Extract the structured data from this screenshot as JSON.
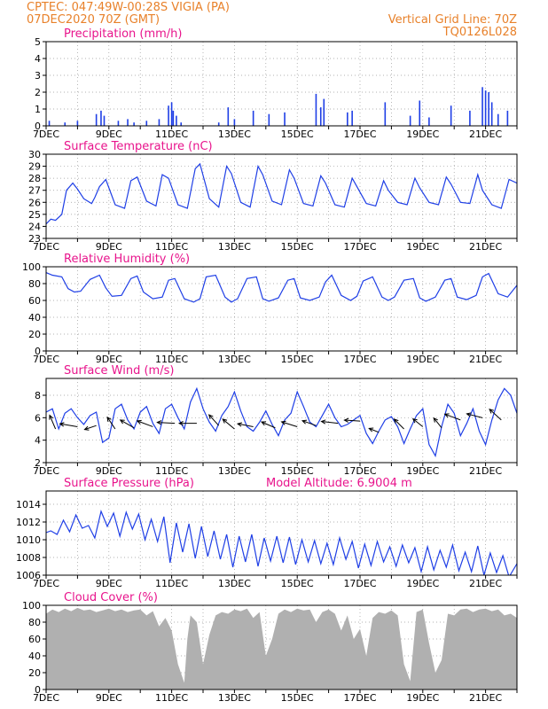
{
  "header": {
    "station": "CPTEC:    047:49W-00:28S   VIGIA (PA)",
    "init": "07DEC2020 70Z (GMT)",
    "grid_note": "Vertical Grid Line: 70Z",
    "model_id": "TQ0126L028"
  },
  "colors": {
    "header_text": "#e8812a",
    "title_text": "#e8148c",
    "line": "#1f3fe6",
    "bar": "#1f3fe6",
    "cloud_fill": "#b0b0b0",
    "arrow": "#000000",
    "grid": "#999999"
  },
  "x_ticks": [
    "7DEC",
    "9DEC",
    "11DEC",
    "13DEC",
    "15DEC",
    "17DEC",
    "19DEC",
    "21DEC"
  ],
  "x_range_days": [
    7,
    22
  ],
  "chart_data": [
    {
      "id": "precip",
      "type": "bar",
      "title": "Precipitation (mm/h)",
      "ylim": [
        0,
        5
      ],
      "yticks": [
        "0",
        "1",
        "2",
        "3",
        "4",
        "5"
      ],
      "tick_values": [
        0,
        1,
        2,
        3,
        4,
        5
      ],
      "x": [
        7.1,
        7.6,
        8.0,
        8.6,
        8.75,
        8.85,
        9.3,
        9.6,
        9.8,
        10.2,
        10.6,
        10.9,
        11.0,
        11.05,
        11.15,
        11.3,
        12.5,
        12.8,
        13.0,
        13.6,
        14.1,
        14.6,
        15.6,
        15.75,
        15.85,
        16.6,
        16.75,
        17.8,
        18.6,
        18.9,
        19.2,
        19.9,
        20.5,
        20.9,
        21.0,
        21.1,
        21.2,
        21.4,
        21.7
      ],
      "values": [
        0.3,
        0.2,
        0.3,
        0.7,
        0.9,
        0.6,
        0.3,
        0.4,
        0.2,
        0.3,
        0.4,
        1.2,
        1.4,
        0.9,
        0.6,
        0.2,
        0.2,
        1.1,
        0.4,
        0.9,
        0.7,
        0.8,
        1.9,
        1.1,
        1.6,
        0.8,
        0.9,
        1.4,
        0.6,
        1.5,
        0.5,
        1.2,
        0.9,
        2.3,
        2.1,
        2.0,
        1.4,
        0.7,
        0.9
      ]
    },
    {
      "id": "temp",
      "type": "line",
      "title": "Surface Temperature (nC)",
      "ylim": [
        23,
        30
      ],
      "yticks": [
        "23",
        "24",
        "25",
        "26",
        "27",
        "28",
        "29",
        "30"
      ],
      "tick_values": [
        23,
        24,
        25,
        26,
        27,
        28,
        29,
        30
      ],
      "x": [
        7.0,
        7.15,
        7.3,
        7.5,
        7.65,
        7.85,
        8.0,
        8.2,
        8.45,
        8.55,
        8.7,
        8.9,
        9.2,
        9.5,
        9.7,
        9.9,
        10.2,
        10.5,
        10.7,
        10.9,
        11.2,
        11.5,
        11.75,
        11.9,
        12.2,
        12.5,
        12.75,
        12.9,
        13.2,
        13.5,
        13.75,
        13.9,
        14.2,
        14.5,
        14.75,
        14.9,
        15.2,
        15.5,
        15.75,
        15.9,
        16.2,
        16.5,
        16.75,
        16.9,
        17.2,
        17.5,
        17.75,
        17.9,
        18.2,
        18.5,
        18.75,
        18.9,
        19.2,
        19.5,
        19.75,
        19.9,
        20.2,
        20.5,
        20.75,
        20.9,
        21.2,
        21.5,
        21.75,
        22.0
      ],
      "values": [
        24.2,
        24.6,
        24.5,
        25.0,
        27.0,
        27.6,
        27.1,
        26.3,
        25.9,
        26.4,
        27.3,
        27.9,
        25.8,
        25.5,
        27.8,
        28.1,
        26.1,
        25.7,
        28.3,
        28.0,
        25.8,
        25.5,
        28.8,
        29.2,
        26.3,
        25.6,
        29.0,
        28.4,
        26.0,
        25.6,
        29.0,
        28.3,
        26.1,
        25.8,
        28.7,
        28.0,
        25.9,
        25.7,
        28.2,
        27.6,
        25.8,
        25.6,
        28.0,
        27.3,
        25.9,
        25.7,
        27.8,
        27.0,
        26.0,
        25.8,
        28.0,
        27.2,
        26.0,
        25.8,
        28.1,
        27.5,
        26.0,
        25.9,
        28.3,
        27.0,
        25.8,
        25.5,
        27.9,
        27.6
      ]
    },
    {
      "id": "rh",
      "type": "line",
      "title": "Relative Humidity (%)",
      "ylim": [
        0,
        100
      ],
      "yticks": [
        "0",
        "20",
        "40",
        "60",
        "80",
        "100"
      ],
      "tick_values": [
        0,
        20,
        40,
        60,
        80,
        100
      ],
      "x": [
        7.0,
        7.2,
        7.5,
        7.7,
        7.9,
        8.1,
        8.4,
        8.7,
        8.9,
        9.1,
        9.4,
        9.7,
        9.9,
        10.1,
        10.4,
        10.7,
        10.9,
        11.1,
        11.4,
        11.7,
        11.9,
        12.1,
        12.4,
        12.7,
        12.9,
        13.1,
        13.4,
        13.7,
        13.9,
        14.1,
        14.4,
        14.7,
        14.9,
        15.1,
        15.4,
        15.7,
        15.9,
        16.1,
        16.4,
        16.7,
        16.9,
        17.1,
        17.4,
        17.7,
        17.9,
        18.1,
        18.4,
        18.7,
        18.9,
        19.1,
        19.4,
        19.7,
        19.9,
        20.1,
        20.4,
        20.7,
        20.9,
        21.1,
        21.4,
        21.7,
        22.0
      ],
      "values": [
        93,
        90,
        88,
        74,
        70,
        71,
        85,
        90,
        75,
        65,
        66,
        86,
        89,
        70,
        62,
        64,
        84,
        86,
        62,
        58,
        62,
        88,
        90,
        64,
        58,
        62,
        86,
        88,
        62,
        59,
        63,
        84,
        86,
        63,
        60,
        64,
        82,
        90,
        66,
        60,
        65,
        83,
        88,
        64,
        60,
        64,
        84,
        86,
        63,
        59,
        64,
        84,
        86,
        64,
        61,
        66,
        88,
        92,
        68,
        64,
        78
      ]
    },
    {
      "id": "wind",
      "type": "line",
      "title": "Surface Wind (m/s)",
      "ylim": [
        2,
        9.5
      ],
      "yticks": [
        "2",
        "4",
        "6",
        "8"
      ],
      "tick_values": [
        2,
        4,
        6,
        8
      ],
      "x": [
        7.0,
        7.2,
        7.4,
        7.6,
        7.8,
        8.0,
        8.2,
        8.4,
        8.6,
        8.8,
        9.0,
        9.2,
        9.4,
        9.6,
        9.8,
        10.0,
        10.2,
        10.4,
        10.6,
        10.8,
        11.0,
        11.2,
        11.4,
        11.6,
        11.8,
        12.0,
        12.2,
        12.4,
        12.6,
        12.8,
        13.0,
        13.2,
        13.4,
        13.6,
        13.8,
        14.0,
        14.2,
        14.4,
        14.6,
        14.8,
        15.0,
        15.2,
        15.4,
        15.6,
        15.8,
        16.0,
        16.2,
        16.4,
        16.6,
        16.8,
        17.0,
        17.2,
        17.4,
        17.6,
        17.8,
        18.0,
        18.2,
        18.4,
        18.6,
        18.8,
        19.0,
        19.2,
        19.4,
        19.6,
        19.8,
        20.0,
        20.2,
        20.4,
        20.6,
        20.8,
        21.0,
        21.2,
        21.4,
        21.6,
        21.8,
        22.0
      ],
      "values": [
        6.5,
        6.8,
        5.0,
        6.4,
        6.8,
        6.0,
        5.4,
        6.2,
        6.5,
        3.8,
        4.2,
        6.8,
        7.2,
        5.8,
        5.0,
        6.5,
        7.0,
        5.5,
        4.6,
        6.8,
        7.2,
        6.0,
        5.0,
        7.4,
        8.6,
        6.8,
        5.6,
        4.8,
        6.2,
        7.0,
        8.3,
        6.6,
        5.2,
        4.8,
        5.6,
        6.6,
        5.4,
        4.4,
        5.8,
        6.4,
        8.3,
        7.0,
        5.6,
        5.2,
        6.2,
        7.2,
        6.0,
        5.2,
        5.4,
        5.8,
        6.2,
        4.6,
        3.7,
        4.8,
        5.8,
        6.1,
        5.2,
        3.7,
        5.0,
        6.2,
        6.8,
        3.6,
        2.6,
        5.2,
        7.2,
        6.4,
        4.4,
        5.5,
        6.8,
        4.8,
        3.6,
        5.8,
        7.6,
        8.6,
        8.0,
        6.4
      ],
      "arrows": [
        {
          "x": 7.3,
          "y": 5.0,
          "u": -0.3,
          "v": 0.7
        },
        {
          "x": 8.0,
          "y": 5.2,
          "u": -0.9,
          "v": 0.15
        },
        {
          "x": 8.6,
          "y": 5.3,
          "u": -0.6,
          "v": -0.2
        },
        {
          "x": 9.2,
          "y": 5.0,
          "u": -0.4,
          "v": 0.6
        },
        {
          "x": 9.8,
          "y": 5.1,
          "u": -0.7,
          "v": 0.4
        },
        {
          "x": 10.4,
          "y": 5.2,
          "u": -0.8,
          "v": 0.3
        },
        {
          "x": 11.1,
          "y": 5.5,
          "u": -0.9,
          "v": 0.05
        },
        {
          "x": 11.8,
          "y": 5.5,
          "u": -0.9,
          "v": 0.0
        },
        {
          "x": 12.5,
          "y": 5.3,
          "u": -0.5,
          "v": 0.55
        },
        {
          "x": 13.0,
          "y": 5.0,
          "u": -0.6,
          "v": 0.5
        },
        {
          "x": 13.6,
          "y": 5.2,
          "u": -0.8,
          "v": 0.15
        },
        {
          "x": 14.3,
          "y": 5.1,
          "u": -0.7,
          "v": 0.3
        },
        {
          "x": 15.0,
          "y": 5.2,
          "u": -0.8,
          "v": 0.25
        },
        {
          "x": 15.6,
          "y": 5.3,
          "u": -0.7,
          "v": 0.25
        },
        {
          "x": 16.3,
          "y": 5.5,
          "u": -0.85,
          "v": 0.1
        },
        {
          "x": 17.0,
          "y": 5.7,
          "u": -0.8,
          "v": 0.05
        },
        {
          "x": 17.6,
          "y": 4.7,
          "u": -0.5,
          "v": 0.2
        },
        {
          "x": 18.4,
          "y": 5.0,
          "u": -0.5,
          "v": 0.5
        },
        {
          "x": 19.0,
          "y": 5.2,
          "u": -0.5,
          "v": 0.4
        },
        {
          "x": 19.6,
          "y": 5.1,
          "u": -0.4,
          "v": 0.5
        },
        {
          "x": 20.2,
          "y": 5.8,
          "u": -0.8,
          "v": 0.3
        },
        {
          "x": 20.9,
          "y": 6.0,
          "u": -0.8,
          "v": 0.2
        },
        {
          "x": 21.5,
          "y": 5.8,
          "u": -0.6,
          "v": 0.55
        }
      ]
    },
    {
      "id": "pres",
      "type": "line",
      "title": "Surface Pressure (hPa)",
      "annotation": "Model Altitude: 6.9004 m",
      "ylim": [
        1006,
        1015.5
      ],
      "yticks": [
        "1006",
        "1008",
        "1010",
        "1012",
        "1014"
      ],
      "tick_values": [
        1006,
        1008,
        1010,
        1012,
        1014
      ],
      "x": [
        7.0,
        7.15,
        7.35,
        7.55,
        7.75,
        7.95,
        8.15,
        8.35,
        8.55,
        8.75,
        8.95,
        9.15,
        9.35,
        9.55,
        9.75,
        9.95,
        10.15,
        10.35,
        10.55,
        10.75,
        10.95,
        11.15,
        11.35,
        11.55,
        11.75,
        11.95,
        12.15,
        12.35,
        12.55,
        12.75,
        12.95,
        13.15,
        13.35,
        13.55,
        13.75,
        13.95,
        14.15,
        14.35,
        14.55,
        14.75,
        14.95,
        15.15,
        15.35,
        15.55,
        15.75,
        15.95,
        16.15,
        16.35,
        16.55,
        16.75,
        16.95,
        17.15,
        17.35,
        17.55,
        17.75,
        17.95,
        18.15,
        18.35,
        18.55,
        18.75,
        18.95,
        19.15,
        19.35,
        19.55,
        19.75,
        19.95,
        20.15,
        20.35,
        20.55,
        20.75,
        20.95,
        21.15,
        21.35,
        21.55,
        21.75,
        22.0
      ],
      "values": [
        1010.8,
        1011.0,
        1010.6,
        1012.2,
        1010.9,
        1012.8,
        1011.3,
        1011.6,
        1010.2,
        1013.2,
        1011.5,
        1013.0,
        1010.4,
        1013.1,
        1011.2,
        1012.9,
        1010.0,
        1012.3,
        1009.8,
        1012.6,
        1007.4,
        1011.9,
        1008.6,
        1011.8,
        1007.9,
        1011.5,
        1008.1,
        1011.0,
        1007.8,
        1010.6,
        1006.9,
        1010.4,
        1007.5,
        1010.6,
        1007.0,
        1010.2,
        1007.6,
        1010.4,
        1007.4,
        1010.3,
        1007.2,
        1010.0,
        1007.5,
        1009.9,
        1007.3,
        1009.6,
        1007.2,
        1010.2,
        1007.8,
        1009.8,
        1006.8,
        1009.5,
        1007.1,
        1009.8,
        1007.5,
        1009.2,
        1007.0,
        1009.4,
        1007.4,
        1009.1,
        1006.4,
        1009.2,
        1006.6,
        1008.8,
        1006.9,
        1009.4,
        1006.5,
        1008.6,
        1006.4,
        1009.3,
        1006.0,
        1008.5,
        1006.3,
        1008.2,
        1005.8,
        1007.3
      ]
    },
    {
      "id": "cloud",
      "type": "area",
      "title": "Cloud Cover (%)",
      "ylim": [
        0,
        100
      ],
      "yticks": [
        "0",
        "20",
        "40",
        "60",
        "80",
        "100"
      ],
      "tick_values": [
        0,
        20,
        40,
        60,
        80,
        100
      ],
      "x": [
        7.0,
        7.2,
        7.4,
        7.6,
        7.8,
        8.0,
        8.2,
        8.4,
        8.6,
        8.8,
        9.0,
        9.2,
        9.4,
        9.6,
        9.8,
        10.0,
        10.2,
        10.4,
        10.6,
        10.8,
        11.0,
        11.2,
        11.4,
        11.5,
        11.6,
        11.8,
        12.0,
        12.2,
        12.4,
        12.6,
        12.8,
        13.0,
        13.2,
        13.4,
        13.6,
        13.8,
        14.0,
        14.2,
        14.4,
        14.6,
        14.8,
        15.0,
        15.2,
        15.4,
        15.6,
        15.8,
        16.0,
        16.2,
        16.4,
        16.6,
        16.8,
        17.0,
        17.2,
        17.4,
        17.6,
        17.8,
        18.0,
        18.2,
        18.4,
        18.6,
        18.8,
        19.0,
        19.2,
        19.4,
        19.6,
        19.8,
        20.0,
        20.2,
        20.4,
        20.6,
        20.8,
        21.0,
        21.2,
        21.4,
        21.6,
        21.8,
        22.0
      ],
      "values": [
        90,
        95,
        92,
        96,
        93,
        97,
        94,
        95,
        92,
        94,
        96,
        93,
        95,
        92,
        94,
        95,
        88,
        93,
        75,
        85,
        70,
        30,
        8,
        60,
        88,
        80,
        30,
        65,
        88,
        92,
        90,
        95,
        93,
        96,
        85,
        92,
        40,
        60,
        90,
        95,
        92,
        96,
        94,
        95,
        80,
        92,
        95,
        90,
        70,
        88,
        60,
        72,
        40,
        85,
        92,
        90,
        94,
        88,
        30,
        10,
        92,
        95,
        55,
        20,
        35,
        90,
        88,
        95,
        96,
        92,
        95,
        96,
        93,
        95,
        88,
        90,
        85
      ]
    }
  ]
}
